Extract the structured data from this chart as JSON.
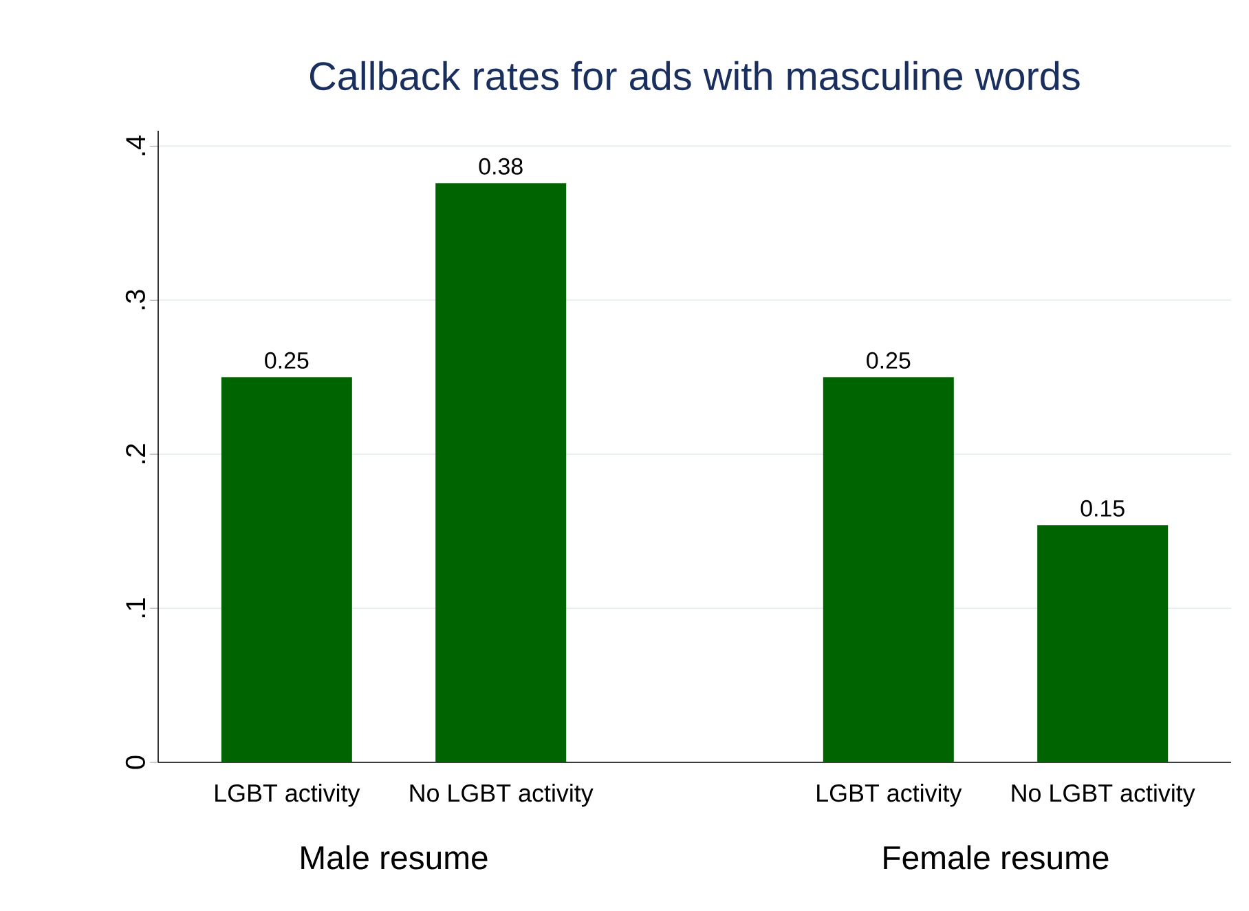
{
  "chart_data": {
    "type": "bar",
    "title": "Callback rates for ads with masculine words",
    "categories": [
      "LGBT activity",
      "No LGBT activity",
      "LGBT activity",
      "No LGBT activity"
    ],
    "values": [
      0.25,
      0.376,
      0.25,
      0.154
    ],
    "value_labels": [
      "0.25",
      "0.38",
      "0.25",
      "0.15"
    ],
    "color": "#006400",
    "ylim": [
      0,
      0.41
    ],
    "yticks": [
      0,
      {
        "value": 0.1,
        "label": ".1"
      },
      {
        "value": 0.2,
        "label": ".2"
      },
      {
        "value": 0.3,
        "label": ".3"
      },
      {
        "value": 0.4,
        "label": ".4"
      }
    ],
    "grid": "y",
    "annotations": [
      "Male resume",
      "Female resume"
    ]
  }
}
